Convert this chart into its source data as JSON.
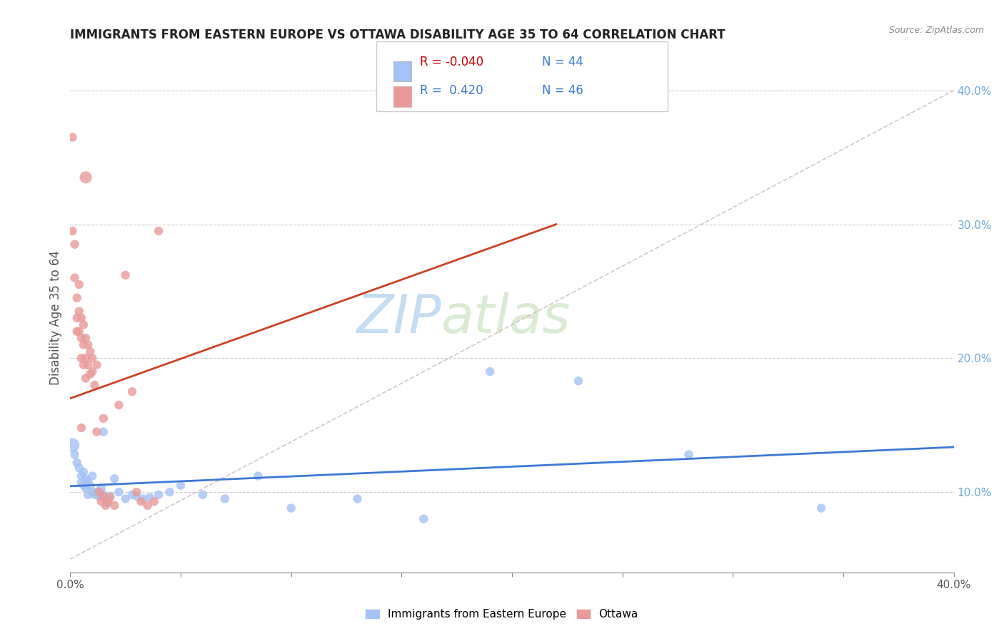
{
  "title": "IMMIGRANTS FROM EASTERN EUROPE VS OTTAWA DISABILITY AGE 35 TO 64 CORRELATION CHART",
  "source": "Source: ZipAtlas.com",
  "ylabel": "Disability Age 35 to 64",
  "legend_label1": "Immigrants from Eastern Europe",
  "legend_label2": "Ottawa",
  "R1": "-0.040",
  "N1": "44",
  "R2": "0.420",
  "N2": "46",
  "xlim": [
    0.0,
    0.4
  ],
  "ylim": [
    0.04,
    0.42
  ],
  "color_blue": "#a4c2f4",
  "color_pink": "#ea9999",
  "color_blue_line": "#3c78d8",
  "color_pink_line": "#cc4125",
  "color_dashed": "#ccb8b8",
  "blue_scatter": [
    [
      0.001,
      0.135
    ],
    [
      0.002,
      0.128
    ],
    [
      0.003,
      0.122
    ],
    [
      0.004,
      0.118
    ],
    [
      0.005,
      0.112
    ],
    [
      0.005,
      0.107
    ],
    [
      0.006,
      0.115
    ],
    [
      0.006,
      0.105
    ],
    [
      0.007,
      0.11
    ],
    [
      0.007,
      0.103
    ],
    [
      0.008,
      0.108
    ],
    [
      0.008,
      0.098
    ],
    [
      0.009,
      0.105
    ],
    [
      0.01,
      0.112
    ],
    [
      0.01,
      0.1
    ],
    [
      0.011,
      0.098
    ],
    [
      0.012,
      0.1
    ],
    [
      0.013,
      0.097
    ],
    [
      0.014,
      0.103
    ],
    [
      0.015,
      0.098
    ],
    [
      0.016,
      0.095
    ],
    [
      0.017,
      0.092
    ],
    [
      0.018,
      0.097
    ],
    [
      0.02,
      0.11
    ],
    [
      0.022,
      0.1
    ],
    [
      0.025,
      0.095
    ],
    [
      0.028,
      0.098
    ],
    [
      0.03,
      0.097
    ],
    [
      0.033,
      0.095
    ],
    [
      0.036,
      0.096
    ],
    [
      0.04,
      0.098
    ],
    [
      0.045,
      0.1
    ],
    [
      0.05,
      0.105
    ],
    [
      0.06,
      0.098
    ],
    [
      0.07,
      0.095
    ],
    [
      0.085,
      0.112
    ],
    [
      0.1,
      0.088
    ],
    [
      0.13,
      0.095
    ],
    [
      0.16,
      0.08
    ],
    [
      0.19,
      0.19
    ],
    [
      0.23,
      0.183
    ],
    [
      0.28,
      0.128
    ],
    [
      0.34,
      0.088
    ],
    [
      0.015,
      0.145
    ]
  ],
  "pink_scatter": [
    [
      0.001,
      0.365
    ],
    [
      0.001,
      0.295
    ],
    [
      0.002,
      0.285
    ],
    [
      0.002,
      0.26
    ],
    [
      0.003,
      0.245
    ],
    [
      0.003,
      0.23
    ],
    [
      0.003,
      0.22
    ],
    [
      0.004,
      0.255
    ],
    [
      0.004,
      0.235
    ],
    [
      0.004,
      0.22
    ],
    [
      0.005,
      0.23
    ],
    [
      0.005,
      0.215
    ],
    [
      0.005,
      0.2
    ],
    [
      0.006,
      0.225
    ],
    [
      0.006,
      0.21
    ],
    [
      0.006,
      0.195
    ],
    [
      0.007,
      0.215
    ],
    [
      0.007,
      0.2
    ],
    [
      0.007,
      0.185
    ],
    [
      0.008,
      0.21
    ],
    [
      0.008,
      0.195
    ],
    [
      0.009,
      0.205
    ],
    [
      0.009,
      0.188
    ],
    [
      0.01,
      0.2
    ],
    [
      0.01,
      0.19
    ],
    [
      0.011,
      0.18
    ],
    [
      0.012,
      0.195
    ],
    [
      0.012,
      0.145
    ],
    [
      0.013,
      0.1
    ],
    [
      0.014,
      0.093
    ],
    [
      0.015,
      0.097
    ],
    [
      0.016,
      0.09
    ],
    [
      0.017,
      0.093
    ],
    [
      0.018,
      0.096
    ],
    [
      0.02,
      0.09
    ],
    [
      0.022,
      0.165
    ],
    [
      0.025,
      0.262
    ],
    [
      0.028,
      0.175
    ],
    [
      0.03,
      0.1
    ],
    [
      0.032,
      0.093
    ],
    [
      0.035,
      0.09
    ],
    [
      0.038,
      0.093
    ],
    [
      0.04,
      0.295
    ],
    [
      0.007,
      0.335
    ],
    [
      0.005,
      0.148
    ],
    [
      0.015,
      0.155
    ]
  ],
  "blue_sizes": [
    200,
    80,
    80,
    80,
    80,
    80,
    80,
    80,
    80,
    80,
    80,
    80,
    80,
    80,
    80,
    80,
    80,
    80,
    80,
    80,
    80,
    80,
    80,
    80,
    80,
    80,
    80,
    80,
    80,
    80,
    80,
    80,
    80,
    80,
    80,
    80,
    80,
    80,
    80,
    80,
    80,
    80,
    80,
    80
  ],
  "pink_sizes": [
    80,
    80,
    80,
    80,
    80,
    80,
    80,
    80,
    80,
    80,
    80,
    80,
    80,
    80,
    80,
    80,
    80,
    80,
    80,
    80,
    80,
    80,
    80,
    80,
    80,
    80,
    80,
    80,
    80,
    80,
    80,
    80,
    80,
    80,
    80,
    80,
    80,
    80,
    80,
    80,
    80,
    80,
    80,
    150,
    80,
    80
  ]
}
